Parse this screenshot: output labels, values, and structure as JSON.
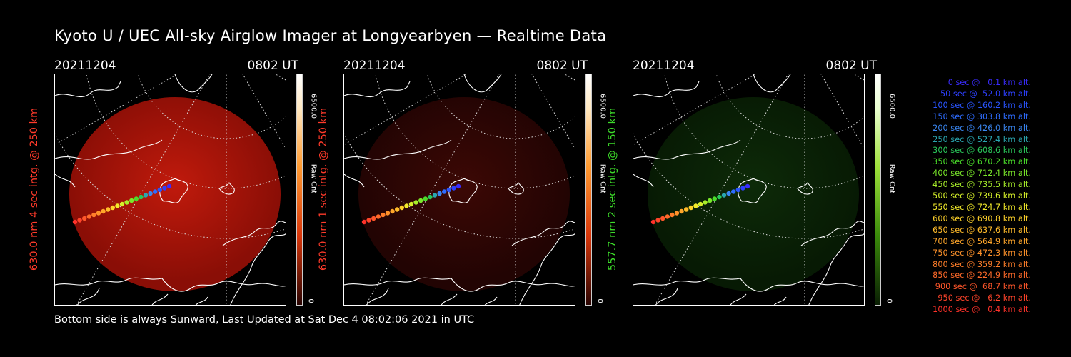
{
  "title": "Kyoto U / UEC All-sky Airglow Imager at Longyearbyen — Realtime Data",
  "panels": [
    {
      "date": "20211204",
      "time": "0802 UT",
      "side_label": "630.0 nm 4 sec intg. @ 250 km",
      "label_color": "#ff3a2a",
      "cbar_max": "6500.0",
      "cbar_min": "0",
      "cbar_unit": "Raw Cnt",
      "glow": "red-strong"
    },
    {
      "date": "20211204",
      "time": "0802 UT",
      "side_label": "630.0 nm 1 sec intg. @ 250 km",
      "label_color": "#ff3a2a",
      "cbar_max": "6500.0",
      "cbar_min": "0",
      "cbar_unit": "Raw Cnt",
      "glow": "red-faint"
    },
    {
      "date": "20211204",
      "time": "0802 UT",
      "side_label": "557.7 nm 2 sec intg. @ 150 km",
      "label_color": "#3ddc2a",
      "cbar_max": "6500.0",
      "cbar_min": "0",
      "cbar_unit": "Raw Cnt",
      "glow": "green-faint"
    }
  ],
  "legend": [
    {
      "text": "0 sec @   0.1 km alt.",
      "color": "#3a2cff"
    },
    {
      "text": "50 sec @  52.0 km alt.",
      "color": "#2d40ff"
    },
    {
      "text": "100 sec @ 160.2 km alt.",
      "color": "#2a55ff"
    },
    {
      "text": "150 sec @ 303.8 km alt.",
      "color": "#2e6cff"
    },
    {
      "text": "200 sec @ 426.0 km alt.",
      "color": "#3a86f0"
    },
    {
      "text": "250 sec @ 527.4 km alt.",
      "color": "#2aa6b0"
    },
    {
      "text": "300 sec @ 608.6 km alt.",
      "color": "#2ac85a"
    },
    {
      "text": "350 sec @ 670.2 km alt.",
      "color": "#4adc2a"
    },
    {
      "text": "400 sec @ 712.4 km alt.",
      "color": "#7ae82a"
    },
    {
      "text": "450 sec @ 735.5 km alt.",
      "color": "#a8ee2a"
    },
    {
      "text": "500 sec @ 739.6 km alt.",
      "color": "#d6f02a"
    },
    {
      "text": "550 sec @ 724.7 km alt.",
      "color": "#f2ea2a"
    },
    {
      "text": "600 sec @ 690.8 km alt.",
      "color": "#ffd22a"
    },
    {
      "text": "650 sec @ 637.6 km alt.",
      "color": "#ffbb2a"
    },
    {
      "text": "700 sec @ 564.9 km alt.",
      "color": "#ffa62a"
    },
    {
      "text": "750 sec @ 472.3 km alt.",
      "color": "#ff922a"
    },
    {
      "text": "800 sec @ 359.2 km alt.",
      "color": "#ff7e2a"
    },
    {
      "text": "850 sec @ 224.9 km alt.",
      "color": "#ff6a2a"
    },
    {
      "text": "900 sec @  68.7 km alt.",
      "color": "#ff562a"
    },
    {
      "text": "950 sec @   6.2 km alt.",
      "color": "#ff442a"
    },
    {
      "text": "1000 sec @   0.4 km alt.",
      "color": "#ff322a"
    }
  ],
  "footer": "Bottom side is always Sunward, Last Updated at Sat Dec  4 08:02:06 2021 in UTC"
}
